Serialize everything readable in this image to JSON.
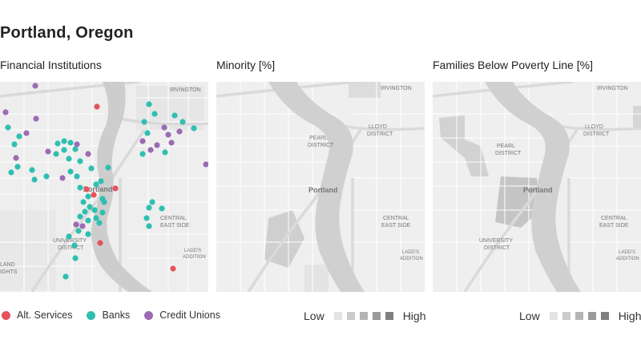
{
  "title": "Portland, Oregon",
  "panels": [
    {
      "title": "Financial Institutions"
    },
    {
      "title": "Minority [%]"
    },
    {
      "title": "Families Below Poverty Line [%]"
    }
  ],
  "legend": {
    "alt_services": {
      "label": "Alt. Services",
      "color": "#e5535c"
    },
    "banks": {
      "label": "Banks",
      "color": "#2fbfb1"
    },
    "credit_unions": {
      "label": "Credit Unions",
      "color": "#9b6bb3"
    }
  },
  "scale": {
    "low": "Low",
    "high": "High",
    "colors": [
      "#e3e3e3",
      "#cccccc",
      "#b4b4b4",
      "#9a9a9a",
      "#7f7f7f"
    ]
  },
  "map_labels": {
    "irvington": "IRVINGTON",
    "portland": "Portland",
    "pearl_district": "PEARL\nDISTRICT",
    "lloyd_district": "LLOYD\nDISTRICT",
    "central_eastside": "CENTRAL\nEAST SIDE",
    "university_district": "UNIVERSITY\nDISTRICT",
    "lads_addition": "LADD'S\nADDITION",
    "land": "LAND",
    "ights": "IGHTS"
  }
}
